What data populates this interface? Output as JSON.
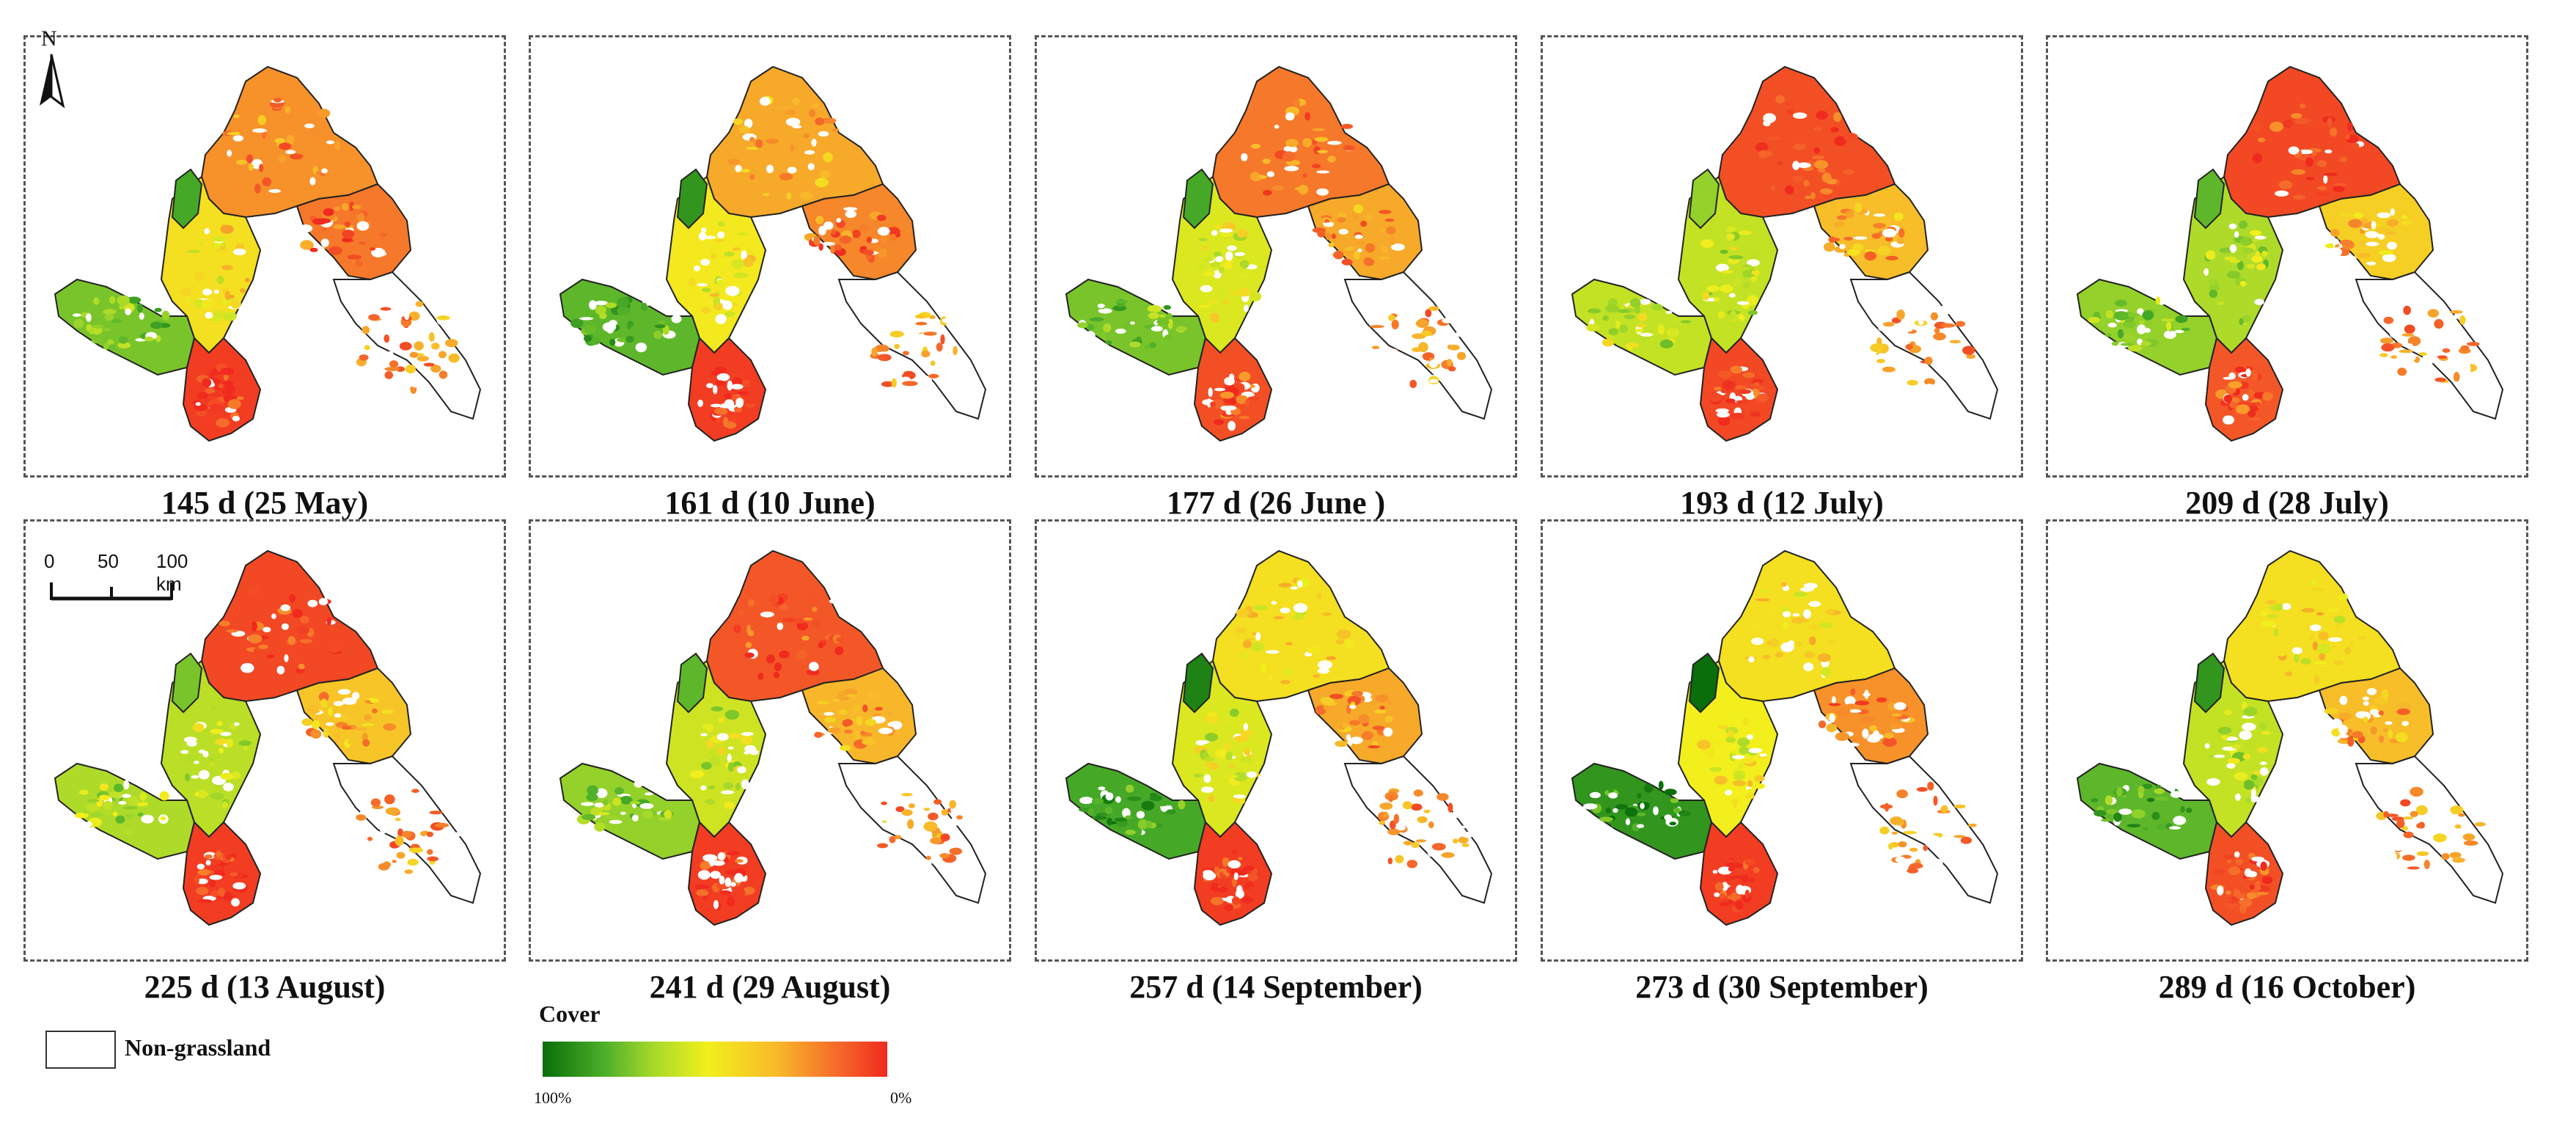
{
  "figure": {
    "north_label": "N",
    "scale": {
      "ticks": [
        "0",
        "50",
        "100 km"
      ]
    },
    "legend": {
      "non_grassland": "Non-grassland",
      "cover_title": "Cover",
      "cover_min_label": "100%",
      "cover_max_label": "0%",
      "ramp_colors": [
        "#0a6e0a",
        "#4caf2a",
        "#a6d92a",
        "#f2ef1c",
        "#f8b92a",
        "#f5682a",
        "#f02a1e"
      ]
    },
    "panels": [
      {
        "label": "145 d (25 May)",
        "tone": 0.55,
        "sw_tone": 0.25,
        "south_tone": 0.95,
        "north_tone": 0.75
      },
      {
        "label": "161 d (10 June)",
        "tone": 0.52,
        "sw_tone": 0.2,
        "south_tone": 0.95,
        "north_tone": 0.7
      },
      {
        "label": "177 d (26 June )",
        "tone": 0.45,
        "sw_tone": 0.25,
        "south_tone": 0.9,
        "north_tone": 0.8
      },
      {
        "label": "193 d (12 July)",
        "tone": 0.4,
        "sw_tone": 0.4,
        "south_tone": 0.92,
        "north_tone": 0.9
      },
      {
        "label": "209 d (28 July)",
        "tone": 0.35,
        "sw_tone": 0.3,
        "south_tone": 0.88,
        "north_tone": 0.92
      },
      {
        "label": "225 d (13 August)",
        "tone": 0.38,
        "sw_tone": 0.35,
        "south_tone": 0.95,
        "north_tone": 0.92
      },
      {
        "label": "241 d (29 August)",
        "tone": 0.42,
        "sw_tone": 0.3,
        "south_tone": 0.95,
        "north_tone": 0.88
      },
      {
        "label": "257 d (14 September)",
        "tone": 0.45,
        "sw_tone": 0.15,
        "south_tone": 0.95,
        "north_tone": 0.55
      },
      {
        "label": "273 d (30 September)",
        "tone": 0.5,
        "sw_tone": 0.1,
        "south_tone": 0.95,
        "north_tone": 0.55
      },
      {
        "label": "289 d (16 October)",
        "tone": 0.4,
        "sw_tone": 0.2,
        "south_tone": 0.9,
        "north_tone": 0.55
      }
    ]
  }
}
